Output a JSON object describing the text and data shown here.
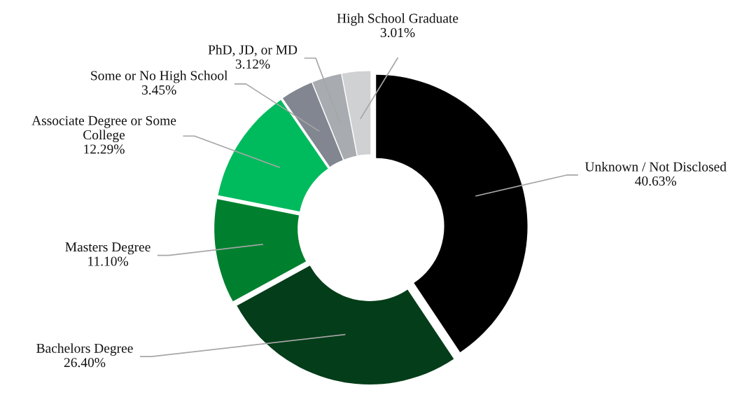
{
  "chart_data": {
    "type": "donut",
    "categories": [
      "Unknown / Not Disclosed",
      "Bachelors Degree",
      "Masters Degree",
      "Associate Degree or Some College",
      "Some or No High School",
      "PhD, JD, or MD",
      "High School Graduate"
    ],
    "values": [
      40.63,
      26.4,
      11.1,
      12.29,
      3.45,
      3.12,
      3.01
    ],
    "value_labels": [
      "40.63%",
      "26.40%",
      "11.10%",
      "12.29%",
      "3.45%",
      "3.12%",
      "3.01%"
    ],
    "colors": [
      "#000000",
      "#033d19",
      "#00802f",
      "#00bb5d",
      "#818690",
      "#a8abaf",
      "#d0d1d3"
    ],
    "legend": false
  }
}
